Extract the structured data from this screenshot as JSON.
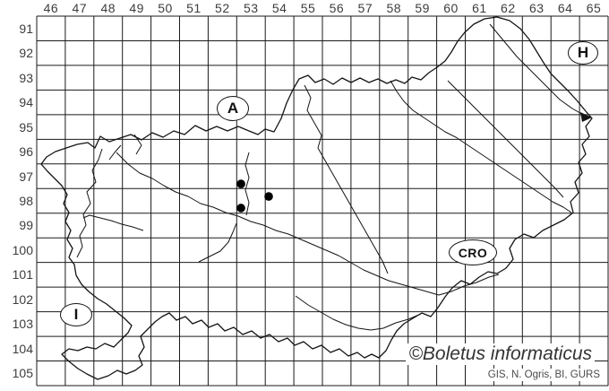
{
  "map": {
    "grid": {
      "col_labels": [
        "46",
        "47",
        "48",
        "49",
        "50",
        "51",
        "52",
        "53",
        "54",
        "55",
        "56",
        "57",
        "58",
        "59",
        "60",
        "61",
        "62",
        "63",
        "64",
        "65"
      ],
      "row_labels": [
        "91",
        "92",
        "93",
        "94",
        "95",
        "96",
        "97",
        "98",
        "99",
        "100",
        "101",
        "102",
        "103",
        "104",
        "105"
      ]
    },
    "neighbor_labels": [
      {
        "name": "austria",
        "code": "A"
      },
      {
        "name": "hungary",
        "code": "H"
      },
      {
        "name": "croatia",
        "code": "CRO"
      },
      {
        "name": "italy",
        "code": "I"
      }
    ],
    "occurrences": [
      {
        "col": 53.15,
        "row": 97.81
      },
      {
        "col": 54.12,
        "row": 98.32
      },
      {
        "col": 53.15,
        "row": 98.79
      }
    ],
    "credits": {
      "watermark": "©Boletus informaticus",
      "sources": "GIS, N. Ogris, BI, GURS"
    },
    "colors": {
      "grid_line": "#1a1a1a",
      "map_line": "#141414",
      "dot": "#000000",
      "label": "#3d3d3d"
    }
  }
}
